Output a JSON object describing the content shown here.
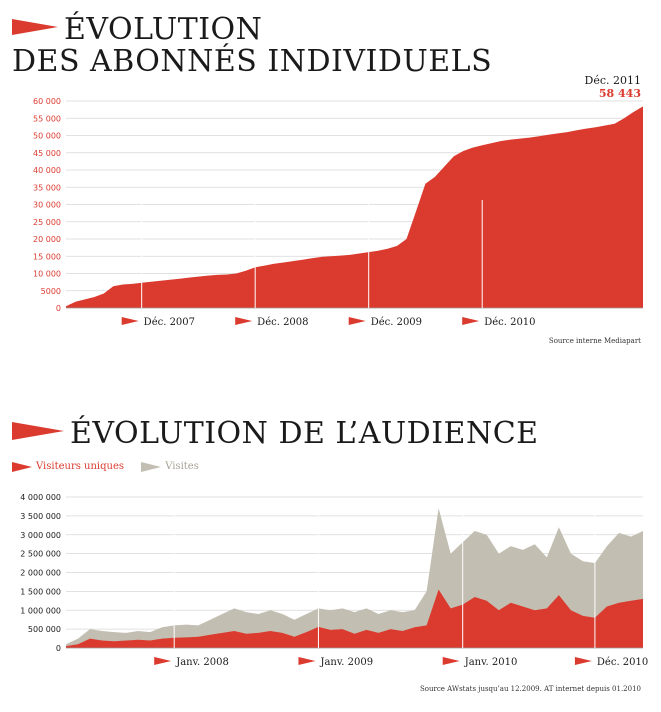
{
  "chart1": {
    "title_line1": "ÉVOLUTION",
    "title_line2": "DES ABONNÉS INDIVIDUELS",
    "last_label_date": "Déc. 2011",
    "last_label_value": "58 443",
    "source": "Source interne Mediapart",
    "colors": {
      "fill": "#db3b2f",
      "text_red": "#db3b2f"
    }
  },
  "chart2": {
    "title": "ÉVOLUTION DE L’AUDIENCE",
    "legend": {
      "unique_label": "Visiteurs uniques",
      "visits_label": "Visites"
    },
    "source": "Source AWstats jusqu’au 12.2009. AT internet depuis 01.2010",
    "colors": {
      "unique": "#db3b2f",
      "visits": "#c3beb2"
    }
  },
  "chart_data": [
    {
      "type": "area",
      "title": "ÉVOLUTION DES ABONNÉS INDIVIDUELS",
      "ylim": [
        0,
        60000
      ],
      "y_ticks": [
        "0",
        "5000",
        "10 000",
        "15 000",
        "20 000",
        "25 000",
        "30 000",
        "35 000",
        "40 000",
        "45 000",
        "50 000",
        "55 000",
        "60 000"
      ],
      "x_period_labels": [
        "Déc. 2007",
        "Déc. 2008",
        "Déc. 2009",
        "Déc. 2010"
      ],
      "x_months_start": "2007-04",
      "grid": true,
      "series": [
        {
          "values": [
            500,
            1800,
            2500,
            3200,
            4200,
            6300,
            6800,
            7000,
            7300,
            7600,
            7900,
            8200,
            8500,
            8800,
            9100,
            9400,
            9600,
            9700,
            10000,
            10800,
            11800,
            12300,
            12800,
            13200,
            13600,
            14000,
            14400,
            14800,
            15000,
            15200,
            15400,
            15800,
            16200,
            16600,
            17200,
            18000,
            20000,
            28000,
            36000,
            38000,
            41000,
            44000,
            45500,
            46500,
            47200,
            47800,
            48400,
            48800,
            49100,
            49400,
            49800,
            50200,
            50600,
            51000,
            51500,
            52000,
            52400,
            52900,
            53400,
            55000,
            56800,
            58443
          ]
        }
      ]
    },
    {
      "type": "area",
      "title": "ÉVOLUTION DE L’AUDIENCE",
      "ylim": [
        0,
        4000000
      ],
      "y_ticks": [
        "0",
        "500 000",
        "1 000 000",
        "1 500 000",
        "2 000 000",
        "2 500 000",
        "3 000 000",
        "3 500 000",
        "4 000 000"
      ],
      "x_period_labels": [
        "Janv. 2008",
        "Janv. 2009",
        "Janv. 2010",
        "Déc. 2010"
      ],
      "x_months_start": "2007-04",
      "grid": true,
      "series": [
        {
          "name": "Visites",
          "values": [
            100000,
            250000,
            500000,
            450000,
            420000,
            400000,
            450000,
            420000,
            550000,
            600000,
            620000,
            600000,
            750000,
            900000,
            1050000,
            950000,
            900000,
            1000000,
            900000,
            750000,
            900000,
            1050000,
            1000000,
            1050000,
            950000,
            1050000,
            900000,
            1000000,
            950000,
            1000000,
            1500000,
            3700000,
            2500000,
            2800000,
            3100000,
            3000000,
            2500000,
            2700000,
            2600000,
            2750000,
            2400000,
            3200000,
            2500000,
            2300000,
            2250000,
            2700000,
            3050000,
            2950000,
            3100000
          ]
        },
        {
          "name": "Visiteurs uniques",
          "values": [
            50000,
            100000,
            250000,
            200000,
            180000,
            200000,
            220000,
            200000,
            250000,
            270000,
            280000,
            300000,
            350000,
            400000,
            450000,
            380000,
            400000,
            450000,
            400000,
            300000,
            420000,
            560000,
            480000,
            500000,
            380000,
            480000,
            400000,
            500000,
            450000,
            550000,
            600000,
            1550000,
            1050000,
            1150000,
            1350000,
            1250000,
            1000000,
            1200000,
            1100000,
            1000000,
            1050000,
            1400000,
            1000000,
            850000,
            800000,
            1100000,
            1200000,
            1250000,
            1300000
          ]
        }
      ]
    }
  ]
}
